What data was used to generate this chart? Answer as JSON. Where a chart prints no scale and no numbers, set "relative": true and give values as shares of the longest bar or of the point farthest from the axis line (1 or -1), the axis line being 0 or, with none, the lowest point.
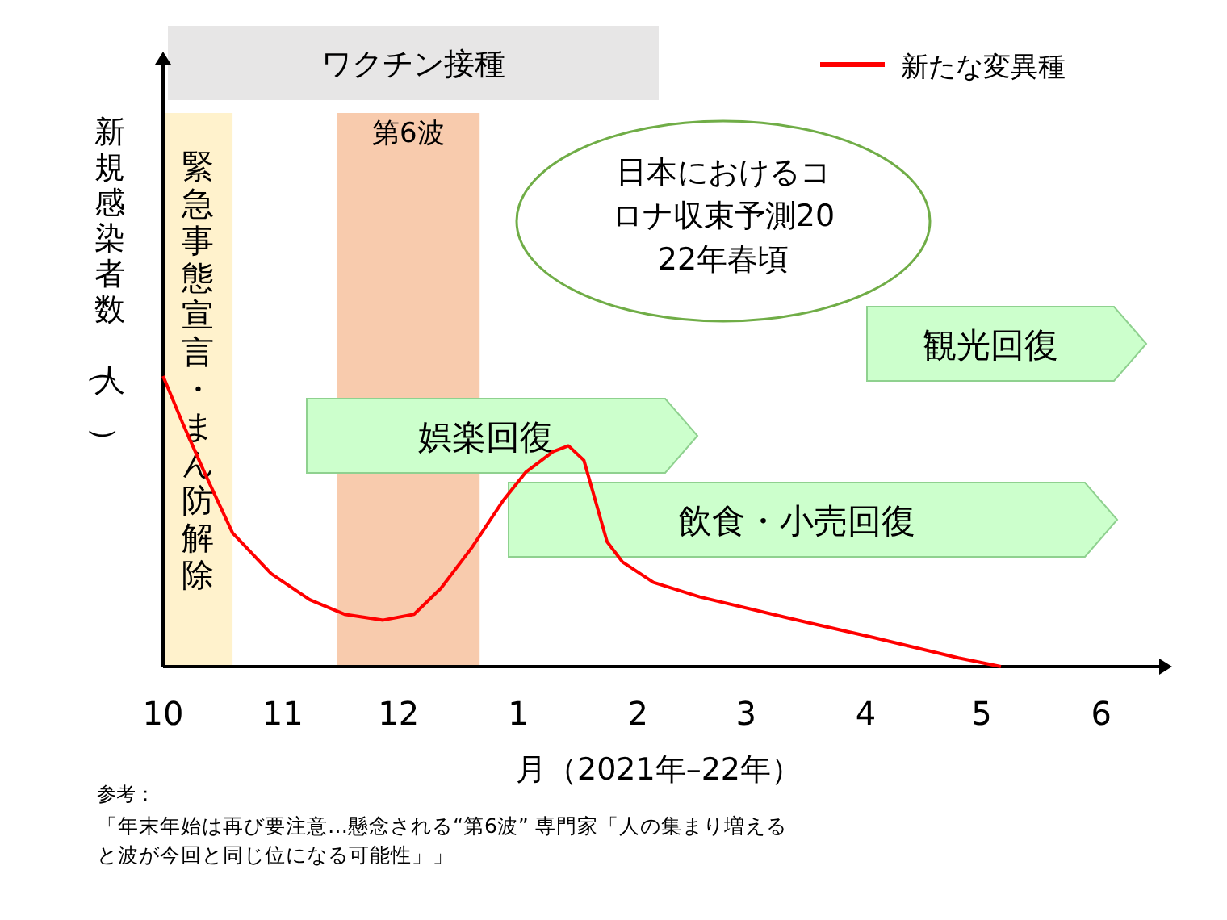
{
  "chart_data": {
    "type": "line",
    "relative": true,
    "xlabel": "月（2021年–22年）",
    "ylabel": "新規感染者数（人）",
    "xlim": [
      "2021-10-01",
      "2022-06-16"
    ],
    "xticks": [
      {
        "value": "2021-10-01",
        "label": "10"
      },
      {
        "value": "2021-11-01",
        "label": "11"
      },
      {
        "value": "2021-12-01",
        "label": "12"
      },
      {
        "value": "2022-01-01",
        "label": "1"
      },
      {
        "value": "2022-02-01",
        "label": "2"
      },
      {
        "value": "2022-03-01",
        "label": "3"
      },
      {
        "value": "2022-04-01",
        "label": "4"
      },
      {
        "value": "2022-05-01",
        "label": "5"
      },
      {
        "value": "2022-06-01",
        "label": "6"
      }
    ],
    "series": [
      {
        "name": "新たな変異種",
        "color": "#ff0000",
        "x": [
          "2021-10-01",
          "2021-10-06",
          "2021-10-12",
          "2021-10-19",
          "2021-10-29",
          "2021-11-08",
          "2021-11-17",
          "2021-11-27",
          "2021-12-05",
          "2021-12-12",
          "2021-12-20",
          "2021-12-28",
          "2022-01-03",
          "2022-01-10",
          "2022-01-14",
          "2022-01-18",
          "2022-01-21",
          "2022-01-24",
          "2022-01-28",
          "2022-02-05",
          "2022-02-17",
          "2022-03-11",
          "2022-04-03",
          "2022-04-25",
          "2022-05-06"
        ],
        "values": [
          1,
          0.84,
          0.66,
          0.46,
          0.32,
          0.23,
          0.18,
          0.16,
          0.18,
          0.27,
          0.41,
          0.57,
          0.67,
          0.74,
          0.76,
          0.71,
          0.57,
          0.43,
          0.36,
          0.29,
          0.24,
          0.17,
          0.1,
          0.03,
          0
        ]
      }
    ],
    "bands": [
      {
        "axis": "x",
        "from": "2021-10-01",
        "to": "2021-10-19",
        "label": "緊急事態宣言・まん防解除",
        "color": "#fff2cc"
      },
      {
        "axis": "x",
        "from": "2021-11-15",
        "to": "2021-12-22",
        "label": "第6波",
        "color": "#f8cbad"
      }
    ],
    "annotations": [
      "ワクチン接種",
      "娯楽回復",
      "飲食・小売回復",
      "観光回復",
      "日本におけるコロナ収束予測2022年春頃",
      "参考：",
      "「年末年始は再び要注意…懸念される“第6波” 専門家「人の集まり増えると波が今回と同じ位になる可能性」」"
    ],
    "legend": "top right",
    "tick_labels": "x"
  }
}
